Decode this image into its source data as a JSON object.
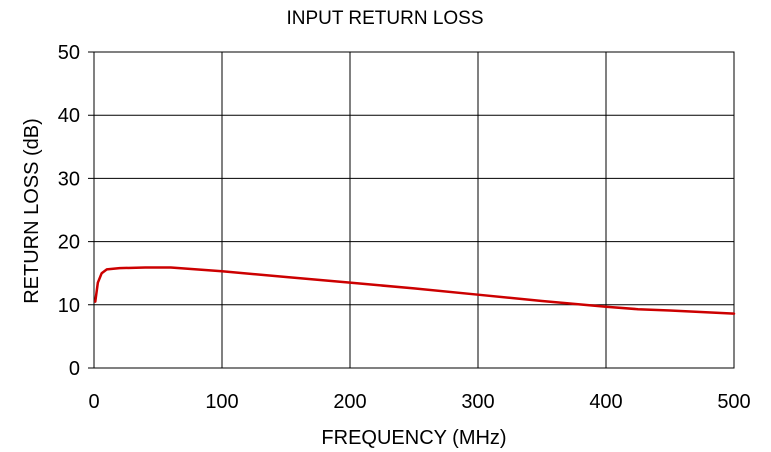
{
  "chart_data": {
    "type": "line",
    "title": "INPUT RETURN LOSS",
    "xlabel": "FREQUENCY (MHz)",
    "ylabel": "RETURN LOSS (dB)",
    "xlim": [
      0,
      500
    ],
    "ylim": [
      0,
      50
    ],
    "xticks": [
      0,
      100,
      200,
      300,
      400,
      500
    ],
    "yticks": [
      0,
      10,
      20,
      30,
      40,
      50
    ],
    "xtick_labels": [
      "0",
      "100",
      "200",
      "300",
      "400",
      "500"
    ],
    "ytick_labels": [
      "0",
      "10",
      "20",
      "30",
      "40",
      "50"
    ],
    "grid": true,
    "line_color": "#cc0000",
    "series": [
      {
        "x": [
          1,
          3,
          6,
          10,
          20,
          40,
          60,
          80,
          100,
          150,
          200,
          250,
          300,
          350,
          400,
          425,
          450,
          500
        ],
        "values": [
          10.5,
          13.5,
          15.0,
          15.6,
          15.8,
          15.9,
          15.9,
          15.6,
          15.3,
          14.4,
          13.5,
          12.6,
          11.6,
          10.6,
          9.7,
          9.3,
          9.1,
          8.6
        ]
      }
    ]
  }
}
